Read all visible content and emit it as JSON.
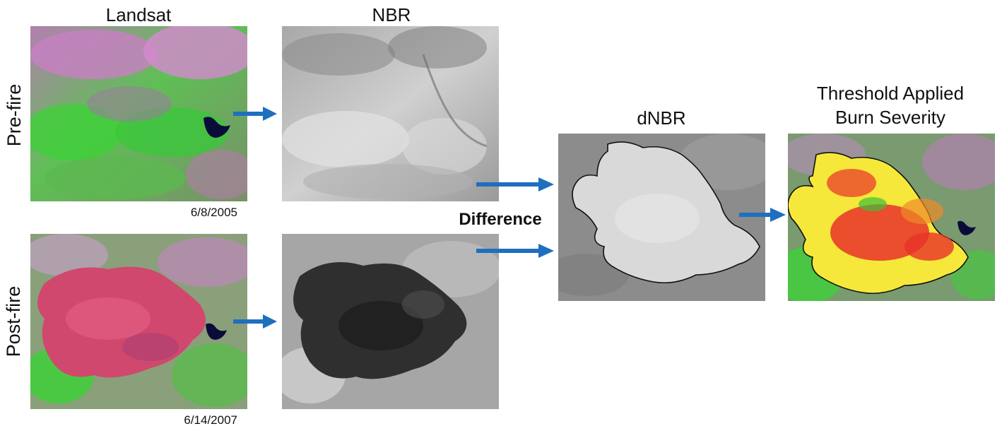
{
  "columns": {
    "landsat": "Landsat",
    "nbr": "NBR",
    "dnbr": "dNBR",
    "threshold_line1": "Threshold Applied",
    "threshold_line2": "Burn Severity"
  },
  "rows": {
    "pre": "Pre-fire",
    "post": "Post-fire"
  },
  "dates": {
    "pre": "6/8/2005",
    "post": "6/14/2007"
  },
  "operation": "Difference",
  "colors": {
    "arrow": "#1f6fbf",
    "vegetation_green": "#3fcf3a",
    "soil_magenta": "#c46bb8",
    "burn_red": "#e8322a",
    "burn_yellow": "#f5e83a",
    "water": "#0b0b3a"
  }
}
